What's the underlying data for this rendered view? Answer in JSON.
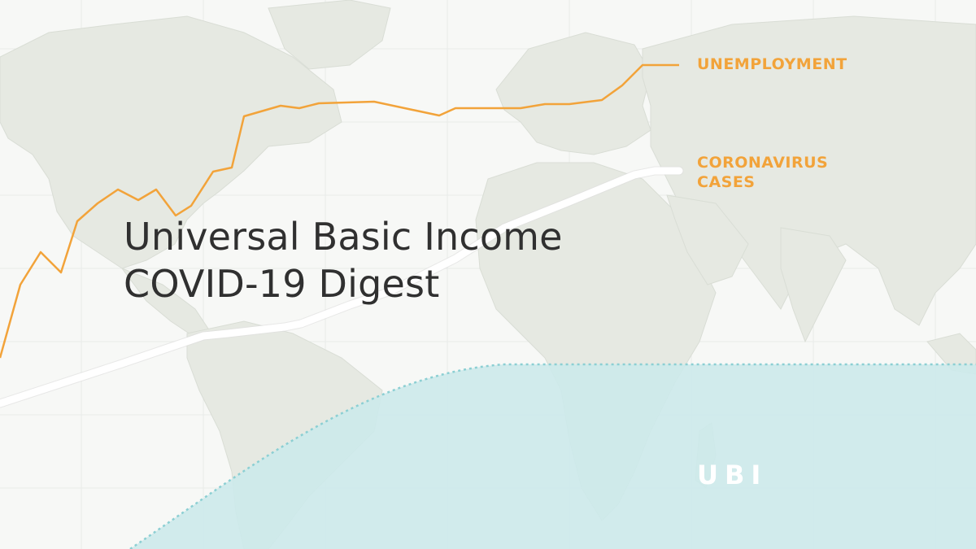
{
  "title": {
    "line1": "Universal Basic Income",
    "line2": "COVID-19 Digest"
  },
  "series_labels": {
    "unemployment": "UNEMPLOYMENT",
    "coronavirus": "CORONAVIRUS CASES",
    "ubi": "UBI"
  },
  "colors": {
    "background": "#f7f8f6",
    "land": "#e6e9e2",
    "unemployment_line": "#f2a33a",
    "coronavirus_line": "#ffffff",
    "ubi_fill": "#cde9ea",
    "ubi_border": "#8ccfd3",
    "title_text": "#303030"
  }
}
